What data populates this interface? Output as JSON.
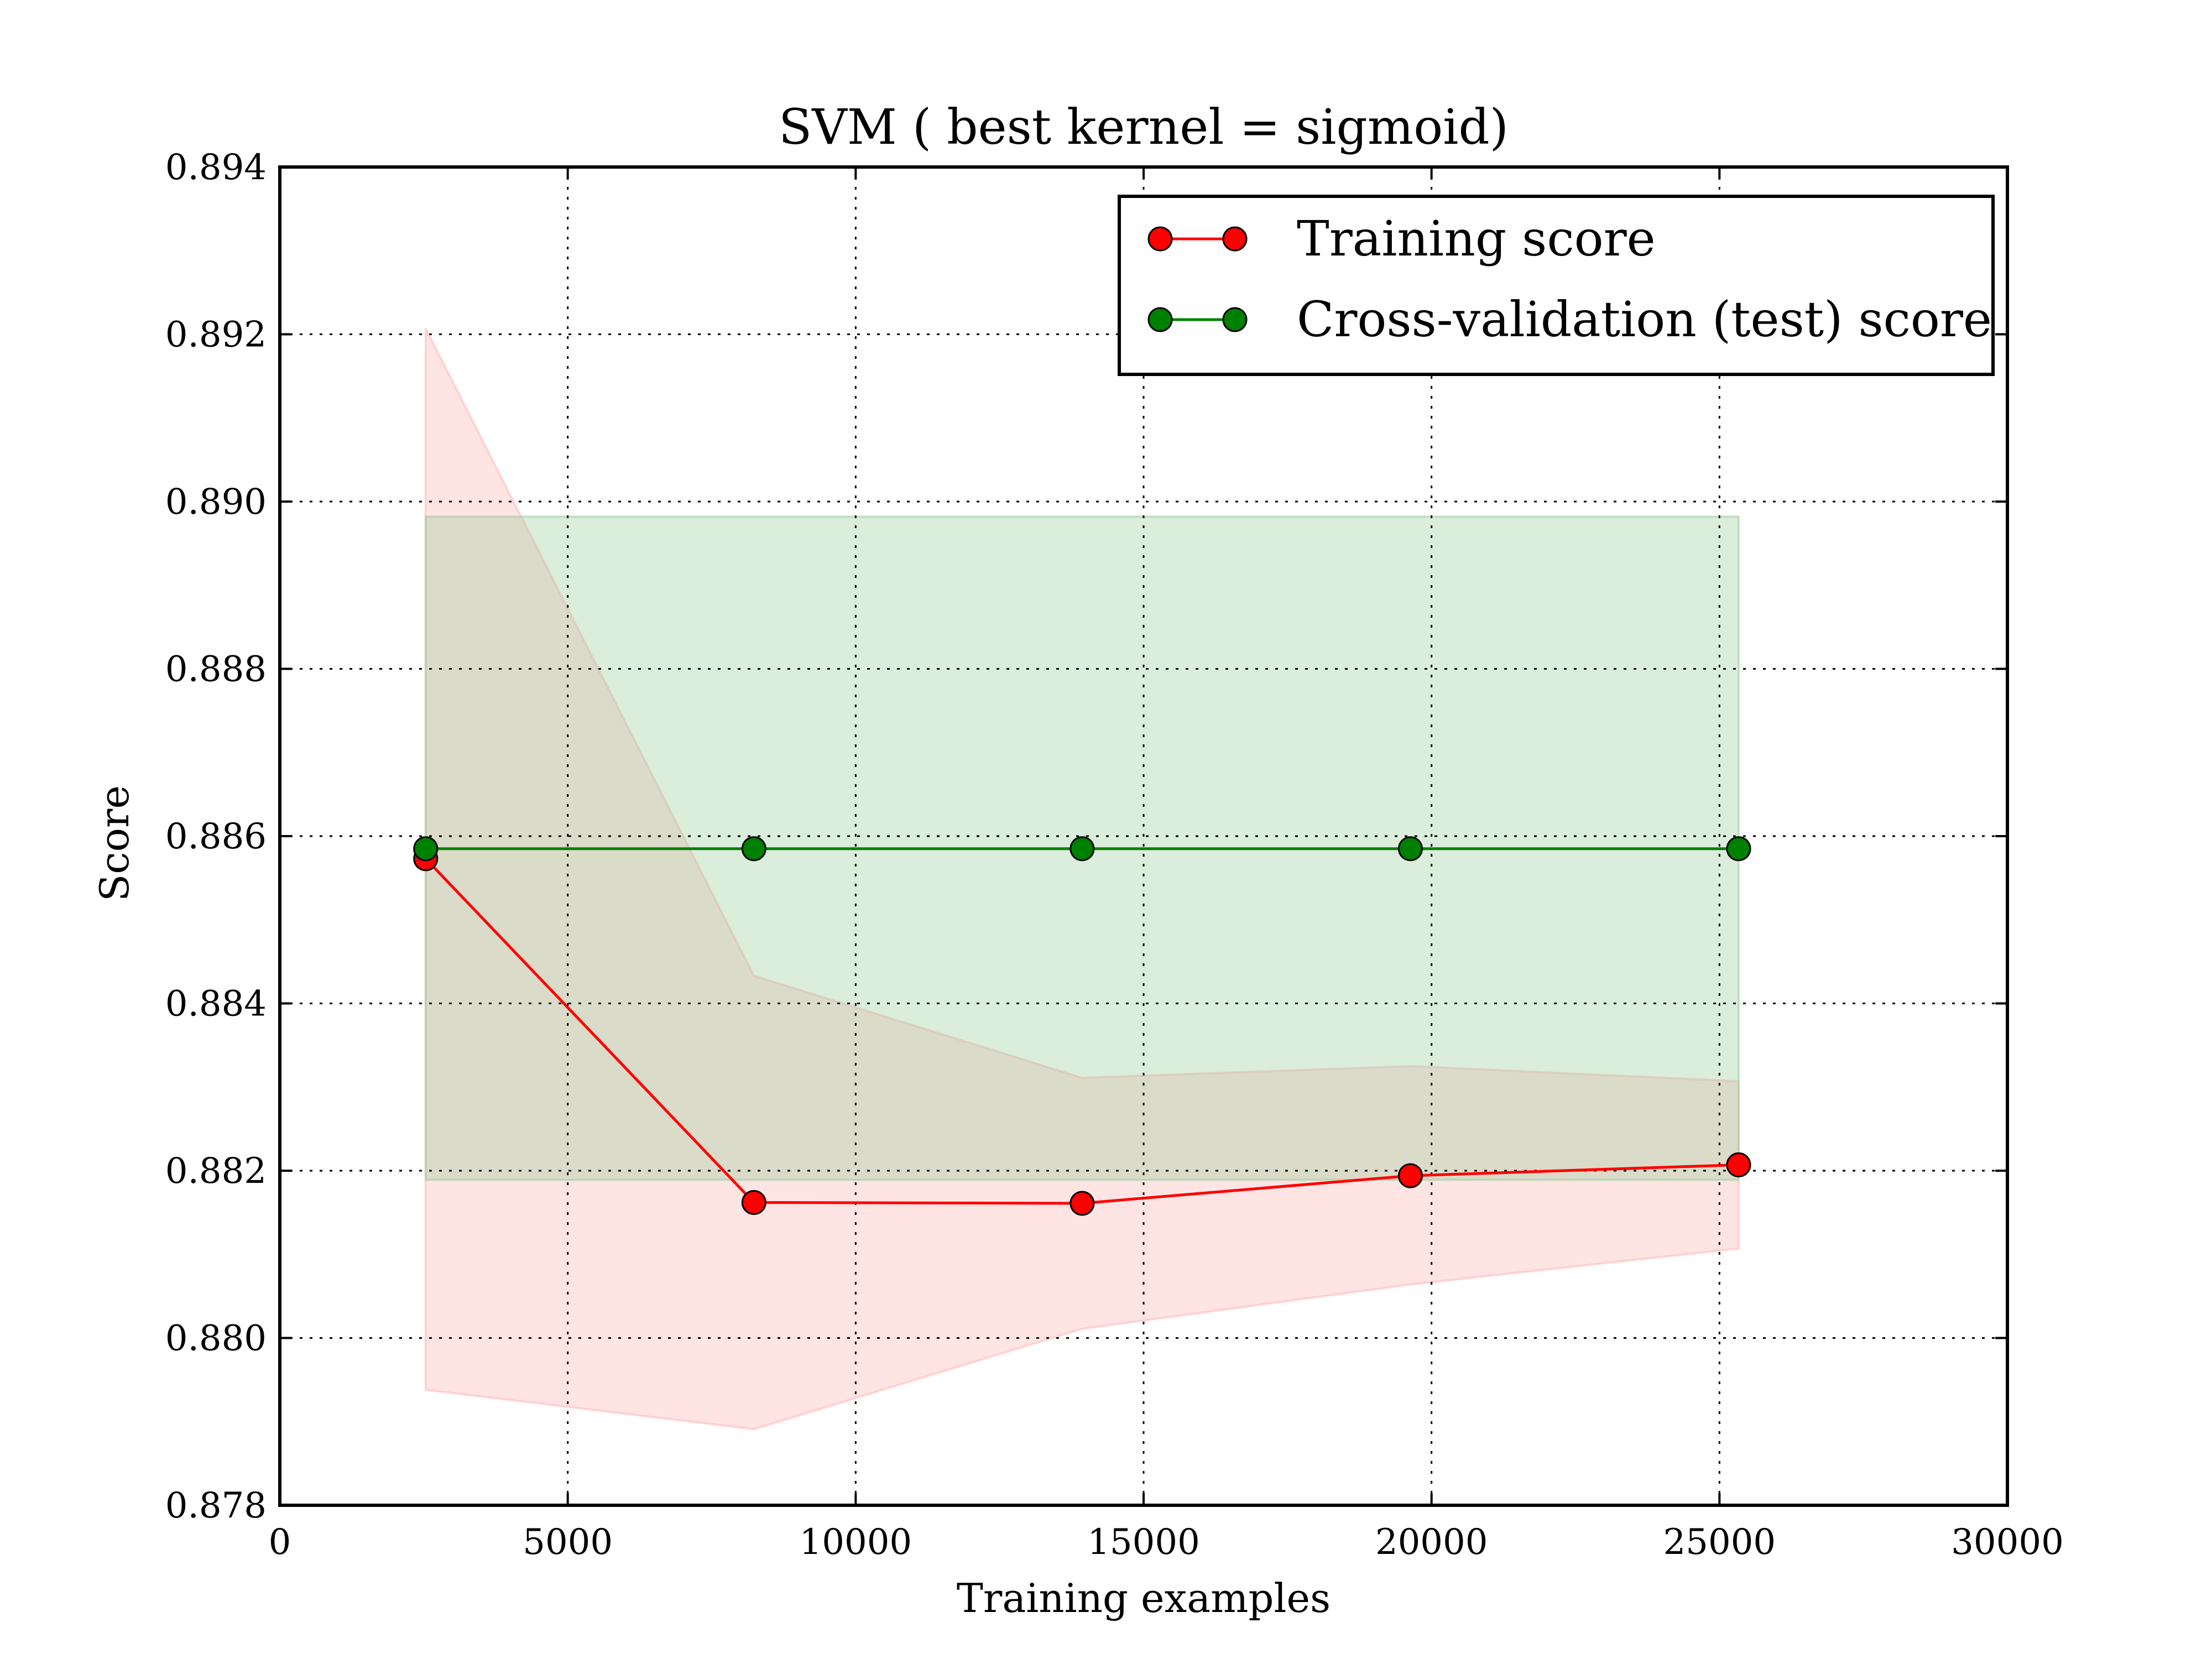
{
  "chart_data": {
    "type": "line",
    "title": "SVM ( best kernel = sigmoid)",
    "xlabel": "Training examples",
    "ylabel": "Score",
    "xlim": [
      0,
      30000
    ],
    "ylim": [
      0.878,
      0.894
    ],
    "xticks": [
      0,
      5000,
      10000,
      15000,
      20000,
      25000,
      30000
    ],
    "xtick_labels": [
      "0",
      "5000",
      "10000",
      "15000",
      "20000",
      "25000",
      "30000"
    ],
    "yticks": [
      0.878,
      0.88,
      0.882,
      0.884,
      0.886,
      0.888,
      0.89,
      0.892,
      0.894
    ],
    "ytick_labels": [
      "0.878",
      "0.880",
      "0.882",
      "0.884",
      "0.886",
      "0.888",
      "0.890",
      "0.892",
      "0.894"
    ],
    "grid": true,
    "legend_position": "top-right",
    "x": [
      2533,
      8233,
      13933,
      19633,
      25333
    ],
    "series": [
      {
        "name": "Training score",
        "color": "#ff0000",
        "band_color": "#ffb3b3",
        "values": [
          0.88573,
          0.88162,
          0.88161,
          0.88194,
          0.88207
        ],
        "band_upper": [
          0.89207,
          0.88433,
          0.88311,
          0.88325,
          0.88307
        ],
        "band_lower": [
          0.87938,
          0.87891,
          0.88011,
          0.88064,
          0.88107
        ]
      },
      {
        "name": "Cross-validation (test) score",
        "color": "#008000",
        "band_color": "#99cc99",
        "values": [
          0.88585,
          0.88585,
          0.88585,
          0.88585,
          0.88585
        ],
        "band_upper": [
          0.88982,
          0.88982,
          0.88982,
          0.88982,
          0.88982
        ],
        "band_lower": [
          0.88189,
          0.88189,
          0.88189,
          0.88189,
          0.88189
        ]
      }
    ]
  }
}
